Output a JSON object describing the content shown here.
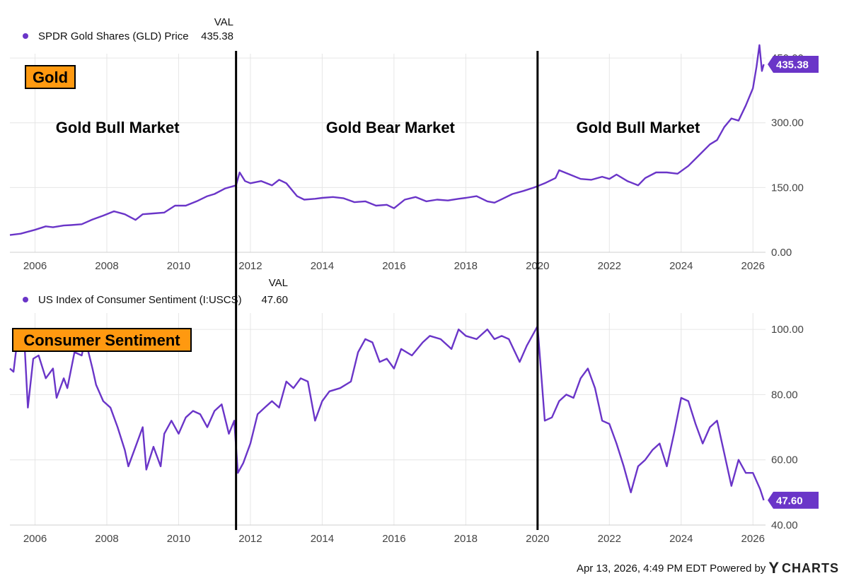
{
  "colors": {
    "series": "#6a35c8",
    "label_box": "#ff9910",
    "grid": "#e6e6e6",
    "axis_text": "#444444",
    "divider": "#000000"
  },
  "chart_data": [
    {
      "type": "line",
      "legend_header": "VAL",
      "legend_label": "SPDR Gold Shares (GLD) Price",
      "legend_value": "435.38",
      "title_box": "Gold",
      "last_value_label": "435.38",
      "x_ticks": [
        "2006",
        "2008",
        "2010",
        "2012",
        "2014",
        "2016",
        "2018",
        "2020",
        "2022",
        "2024",
        "2026"
      ],
      "y_ticks": [
        "0.00",
        "150.00",
        "300.00",
        "450.00"
      ],
      "xlim": [
        2005.3,
        2026.35
      ],
      "ylim": [
        0,
        460
      ],
      "region_labels": [
        {
          "text": "Gold Bull Market",
          "x": 2008.3
        },
        {
          "text": "Gold Bear Market",
          "x": 2015.9
        },
        {
          "text": "Gold Bull Market",
          "x": 2022.8
        }
      ],
      "dividers": [
        2011.6,
        2020.0
      ],
      "series": [
        {
          "name": "SPDR Gold Shares (GLD) Price",
          "x": [
            2005.3,
            2005.6,
            2006.0,
            2006.3,
            2006.5,
            2006.8,
            2007.0,
            2007.3,
            2007.6,
            2007.9,
            2008.2,
            2008.5,
            2008.8,
            2009.0,
            2009.3,
            2009.6,
            2009.9,
            2010.2,
            2010.5,
            2010.8,
            2011.0,
            2011.3,
            2011.6,
            2011.7,
            2011.85,
            2012.0,
            2012.3,
            2012.6,
            2012.8,
            2013.0,
            2013.3,
            2013.5,
            2013.8,
            2014.0,
            2014.3,
            2014.6,
            2014.9,
            2015.2,
            2015.5,
            2015.8,
            2016.0,
            2016.3,
            2016.6,
            2016.9,
            2017.2,
            2017.5,
            2017.8,
            2018.0,
            2018.3,
            2018.6,
            2018.8,
            2019.0,
            2019.3,
            2019.6,
            2019.9,
            2020.2,
            2020.5,
            2020.6,
            2020.9,
            2021.2,
            2021.5,
            2021.8,
            2022.0,
            2022.2,
            2022.5,
            2022.8,
            2023.0,
            2023.3,
            2023.6,
            2023.9,
            2024.2,
            2024.5,
            2024.8,
            2025.0,
            2025.2,
            2025.4,
            2025.6,
            2025.8,
            2025.95,
            2026.0,
            2026.1,
            2026.18,
            2026.25,
            2026.3
          ],
          "values": [
            40,
            43,
            52,
            60,
            58,
            62,
            63,
            65,
            76,
            85,
            95,
            88,
            75,
            88,
            90,
            92,
            108,
            108,
            118,
            130,
            135,
            148,
            155,
            185,
            165,
            160,
            165,
            155,
            168,
            160,
            130,
            122,
            124,
            126,
            128,
            125,
            116,
            118,
            108,
            110,
            102,
            122,
            128,
            118,
            122,
            120,
            124,
            126,
            130,
            118,
            115,
            123,
            135,
            142,
            150,
            160,
            172,
            190,
            180,
            170,
            168,
            175,
            170,
            180,
            165,
            155,
            172,
            185,
            185,
            182,
            200,
            225,
            250,
            260,
            290,
            310,
            305,
            340,
            370,
            380,
            430,
            480,
            420,
            435.38
          ]
        }
      ]
    },
    {
      "type": "line",
      "legend_header": "VAL",
      "legend_label": "US Index of Consumer Sentiment (I:USCS)",
      "legend_value": "47.60",
      "title_box": "Consumer Sentiment",
      "last_value_label": "47.60",
      "x_ticks": [
        "2006",
        "2008",
        "2010",
        "2012",
        "2014",
        "2016",
        "2018",
        "2020",
        "2022",
        "2024",
        "2026"
      ],
      "y_ticks": [
        "40.00",
        "60.00",
        "80.00",
        "100.00"
      ],
      "xlim": [
        2005.3,
        2026.35
      ],
      "ylim": [
        40,
        105
      ],
      "dividers": [
        2011.6,
        2020.0
      ],
      "series": [
        {
          "name": "US Index of Consumer Sentiment (I:USCS)",
          "x": [
            2005.3,
            2005.4,
            2005.5,
            2005.7,
            2005.8,
            2005.95,
            2006.1,
            2006.3,
            2006.5,
            2006.6,
            2006.8,
            2006.9,
            2007.1,
            2007.3,
            2007.4,
            2007.6,
            2007.7,
            2007.9,
            2008.1,
            2008.3,
            2008.5,
            2008.6,
            2008.8,
            2009.0,
            2009.1,
            2009.3,
            2009.5,
            2009.6,
            2009.8,
            2010.0,
            2010.2,
            2010.4,
            2010.6,
            2010.8,
            2011.0,
            2011.2,
            2011.4,
            2011.55,
            2011.65,
            2011.8,
            2012.0,
            2012.2,
            2012.4,
            2012.6,
            2012.8,
            2013.0,
            2013.2,
            2013.4,
            2013.6,
            2013.8,
            2014.0,
            2014.2,
            2014.5,
            2014.8,
            2015.0,
            2015.2,
            2015.4,
            2015.6,
            2015.8,
            2016.0,
            2016.2,
            2016.5,
            2016.8,
            2017.0,
            2017.3,
            2017.6,
            2017.8,
            2018.0,
            2018.3,
            2018.6,
            2018.8,
            2019.0,
            2019.2,
            2019.5,
            2019.7,
            2019.9,
            2020.0,
            2020.2,
            2020.4,
            2020.6,
            2020.8,
            2021.0,
            2021.2,
            2021.4,
            2021.6,
            2021.8,
            2022.0,
            2022.2,
            2022.4,
            2022.6,
            2022.8,
            2023.0,
            2023.2,
            2023.4,
            2023.6,
            2023.8,
            2024.0,
            2024.2,
            2024.4,
            2024.6,
            2024.8,
            2025.0,
            2025.2,
            2025.4,
            2025.6,
            2025.8,
            2026.0,
            2026.2,
            2026.3
          ],
          "values": [
            88,
            87,
            96,
            97,
            76,
            91,
            92,
            85,
            88,
            79,
            85,
            82,
            93,
            92,
            97,
            88,
            83,
            78,
            76,
            70,
            63,
            58,
            64,
            70,
            57,
            64,
            58,
            68,
            72,
            68,
            73,
            75,
            74,
            70,
            75,
            77,
            68,
            72,
            56,
            59,
            65,
            74,
            76,
            78,
            76,
            84,
            82,
            85,
            84,
            72,
            78,
            81,
            82,
            84,
            93,
            97,
            96,
            90,
            91,
            88,
            94,
            92,
            96,
            98,
            97,
            94,
            100,
            98,
            97,
            100,
            97,
            98,
            97,
            90,
            95,
            99,
            101,
            72,
            73,
            78,
            80,
            79,
            85,
            88,
            82,
            72,
            71,
            65,
            58,
            50,
            58,
            60,
            63,
            65,
            58,
            68,
            79,
            78,
            71,
            65,
            70,
            72,
            62,
            52,
            60,
            56,
            56,
            51,
            47.6
          ]
        }
      ]
    }
  ],
  "footer": {
    "timestamp": "Apr 13, 2026, 4:49 PM EDT Powered by",
    "logo_y": "Y",
    "logo_rest": "CHARTS"
  }
}
